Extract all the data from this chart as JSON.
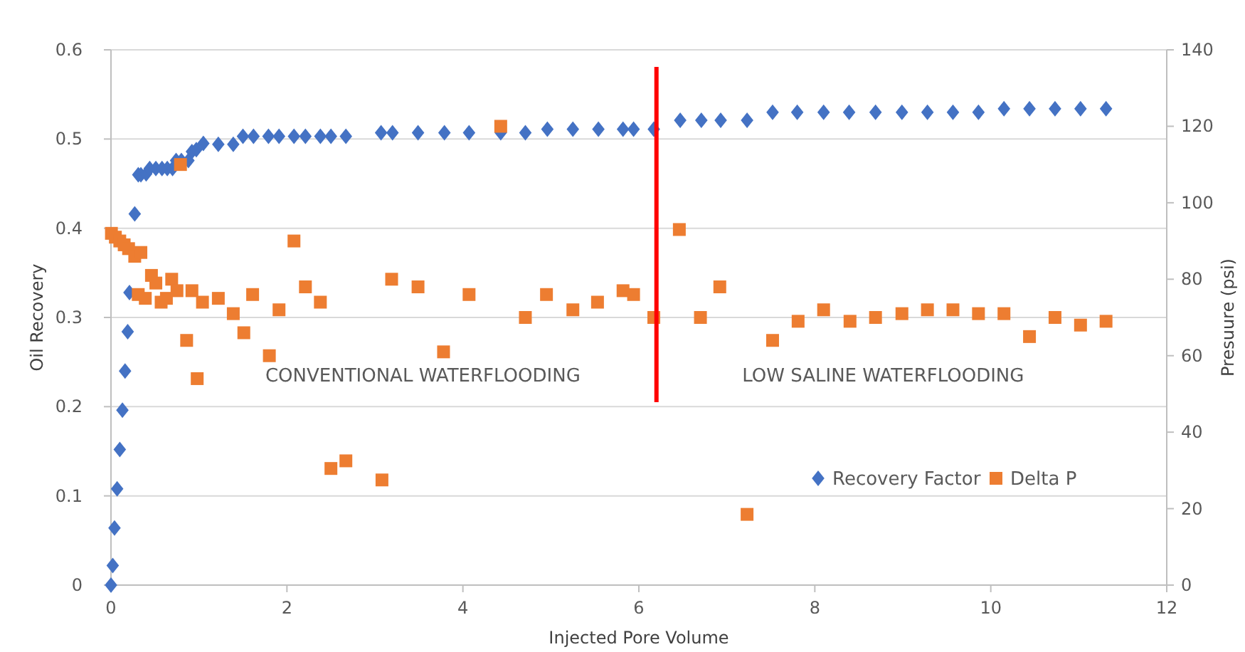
{
  "chart_data": {
    "type": "scatter",
    "xlabel": "Injected Pore Volume",
    "ylabel": "Oil Recovery",
    "y2label": "Presuure (psi)",
    "xlim": [
      0,
      12
    ],
    "xticks": [
      0,
      2,
      4,
      6,
      8,
      10,
      12
    ],
    "ylim": [
      0,
      0.6
    ],
    "yticks": [
      0,
      0.1,
      0.2,
      0.3,
      0.4,
      0.5,
      0.6
    ],
    "y2lim": [
      0,
      140
    ],
    "y2ticks": [
      0,
      20,
      40,
      60,
      80,
      100,
      120,
      140
    ],
    "grid": "y",
    "legend": "bottom right",
    "series": [
      {
        "name": "Recovery Factor",
        "color": "#4472c4",
        "marker": "diamond",
        "x": [
          0,
          0.02,
          0.04,
          0.07,
          0.1,
          0.13,
          0.16,
          0.19,
          0.21,
          0.27,
          0.31,
          0.34,
          0.4,
          0.44,
          0.51,
          0.58,
          0.64,
          0.7,
          0.74,
          0.8,
          0.88,
          0.92,
          0.97,
          1.05,
          1.22,
          1.39,
          1.5,
          1.62,
          1.79,
          1.91,
          2.08,
          2.21,
          2.38,
          2.5,
          2.67,
          3.07,
          3.2,
          3.49,
          3.79,
          4.07,
          4.43,
          4.71,
          4.96,
          5.25,
          5.54,
          5.82,
          5.94,
          6.17,
          6.47,
          6.71,
          6.93,
          7.23,
          7.52,
          7.8,
          8.1,
          8.39,
          8.69,
          8.99,
          9.28,
          9.57,
          9.86,
          10.15,
          10.44,
          10.73,
          11.02,
          11.31
        ],
        "values": [
          0,
          0.022,
          0.064,
          0.108,
          0.152,
          0.196,
          0.24,
          0.284,
          0.328,
          0.416,
          0.46,
          0.46,
          0.461,
          0.467,
          0.467,
          0.467,
          0.467,
          0.467,
          0.476,
          0.476,
          0.476,
          0.486,
          0.488,
          0.495,
          0.494,
          0.494,
          0.503,
          0.503,
          0.503,
          0.503,
          0.503,
          0.503,
          0.503,
          0.503,
          0.503,
          0.507,
          0.507,
          0.507,
          0.507,
          0.507,
          0.507,
          0.507,
          0.511,
          0.511,
          0.511,
          0.511,
          0.511,
          0.511,
          0.521,
          0.521,
          0.521,
          0.521,
          0.53,
          0.53,
          0.53,
          0.53,
          0.53,
          0.53,
          0.53,
          0.53,
          0.53,
          0.534,
          0.534,
          0.534,
          0.534,
          0.534
        ]
      },
      {
        "name": "Delta P",
        "color": "#ed7d31",
        "marker": "square",
        "axis": "y2",
        "x": [
          0.005,
          0.05,
          0.1,
          0.15,
          0.2,
          0.27,
          0.31,
          0.34,
          0.39,
          0.46,
          0.51,
          0.57,
          0.63,
          0.69,
          0.75,
          0.79,
          0.86,
          0.92,
          0.98,
          1.04,
          1.22,
          1.39,
          1.51,
          1.61,
          1.8,
          1.91,
          2.08,
          2.21,
          2.38,
          2.5,
          2.67,
          3.08,
          3.19,
          3.49,
          3.78,
          4.07,
          4.43,
          4.71,
          4.95,
          5.25,
          5.53,
          5.82,
          5.94,
          6.17,
          6.46,
          6.7,
          6.92,
          7.23,
          7.52,
          7.81,
          8.1,
          8.4,
          8.69,
          8.99,
          9.28,
          9.57,
          9.86,
          10.15,
          10.44,
          10.73,
          11.02,
          11.31
        ],
        "values": [
          92,
          91,
          90,
          89,
          88,
          86,
          76,
          87,
          75,
          81,
          79,
          74,
          75,
          80,
          77,
          110,
          64,
          77,
          54,
          74,
          75,
          71,
          66,
          76,
          60,
          72,
          90,
          78,
          74,
          30.5,
          32.5,
          27.5,
          80,
          78,
          61,
          76,
          120,
          70,
          76,
          72,
          74,
          77,
          76,
          70,
          93,
          70,
          78,
          18.5,
          64,
          69,
          72,
          69,
          70,
          71,
          72,
          72,
          71,
          71,
          65,
          70,
          68,
          69
        ]
      }
    ],
    "ref_lines": [
      {
        "axis": "x",
        "value": 6.2,
        "color": "#ff0000"
      }
    ],
    "annotations": [
      "CONVENTIONAL WATERFLOODING",
      "LOW SALINE WATERFLOODING"
    ]
  }
}
